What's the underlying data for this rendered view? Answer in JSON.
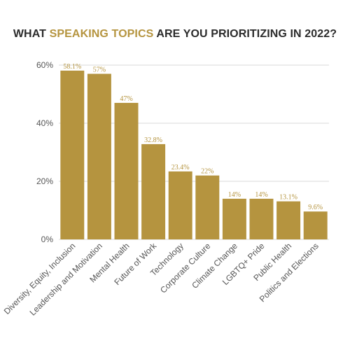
{
  "chart_data": {
    "type": "bar",
    "title_parts": [
      {
        "text": "WHAT ",
        "highlight": false
      },
      {
        "text": "SPEAKING TOPICS",
        "highlight": true
      },
      {
        "text": " ARE YOU PRIORITIZING IN 2022?",
        "highlight": false
      }
    ],
    "categories": [
      "Diversity, Equity, Inclusion",
      "Leadership and Motivation",
      "Mental Health",
      "Future of Work",
      "Technology",
      "Corporate Culture",
      "Climate Change",
      "LGBTQ+ Pride",
      "Public Health",
      "Politics and Elections"
    ],
    "values": [
      58.1,
      57,
      47,
      32.8,
      23.4,
      22,
      14,
      14,
      13.1,
      9.6
    ],
    "data_labels": [
      "58.1%",
      "57%",
      "47%",
      "32.8%",
      "23.4%",
      "22%",
      "14%",
      "14%",
      "13.1%",
      "9.6%"
    ],
    "y_ticks": [
      0,
      20,
      40,
      60
    ],
    "y_tick_labels": [
      "0%",
      "20%",
      "40%",
      "60%"
    ],
    "ylim": [
      0,
      60
    ],
    "grid": true,
    "colors": {
      "bar": "#b5943f",
      "highlight": "#b5943f",
      "title": "#2b2b2b",
      "label": "#b5943f",
      "axis_text": "#555555",
      "grid": "#d9d9d9"
    }
  }
}
